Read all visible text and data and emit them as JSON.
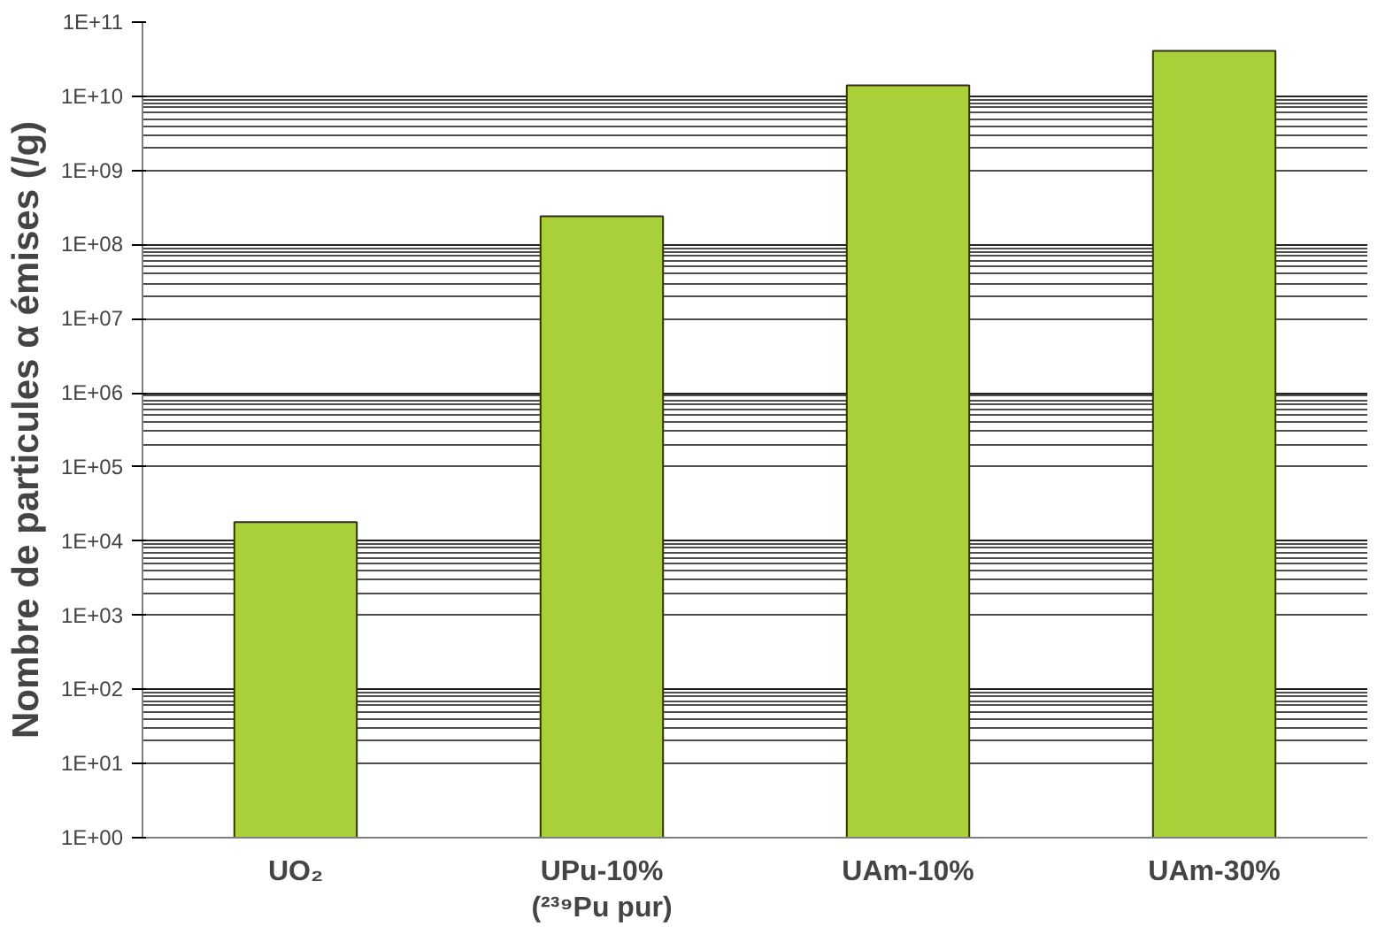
{
  "chart_data": {
    "type": "bar",
    "ylabel": "Nombre de particules α émises (/g)",
    "categories": [
      "UO₂",
      "UPu-10%\n(²³⁹Pu pur)",
      "UAm-10%",
      "UAm-30%"
    ],
    "values": [
      18000,
      240000000,
      14000000000,
      41000000000
    ],
    "color": "#a8d038",
    "log": true,
    "ylim": [
      1,
      100000000000
    ],
    "yticks": [
      {
        "value": 1,
        "label": "1E+00"
      },
      {
        "value": 10,
        "label": "1E+01"
      },
      {
        "value": 100,
        "label": "1E+02"
      },
      {
        "value": 1000,
        "label": "1E+03"
      },
      {
        "value": 10000,
        "label": "1E+04"
      },
      {
        "value": 100000,
        "label": "1E+05"
      },
      {
        "value": 1000000,
        "label": "1E+06"
      },
      {
        "value": 10000000,
        "label": "1E+07"
      },
      {
        "value": 100000000,
        "label": "1E+08"
      },
      {
        "value": 1000000000,
        "label": "1E+09"
      },
      {
        "value": 10000000000,
        "label": "1E+10"
      },
      {
        "value": 100000000000,
        "label": "1E+11"
      }
    ],
    "grid": "y"
  }
}
